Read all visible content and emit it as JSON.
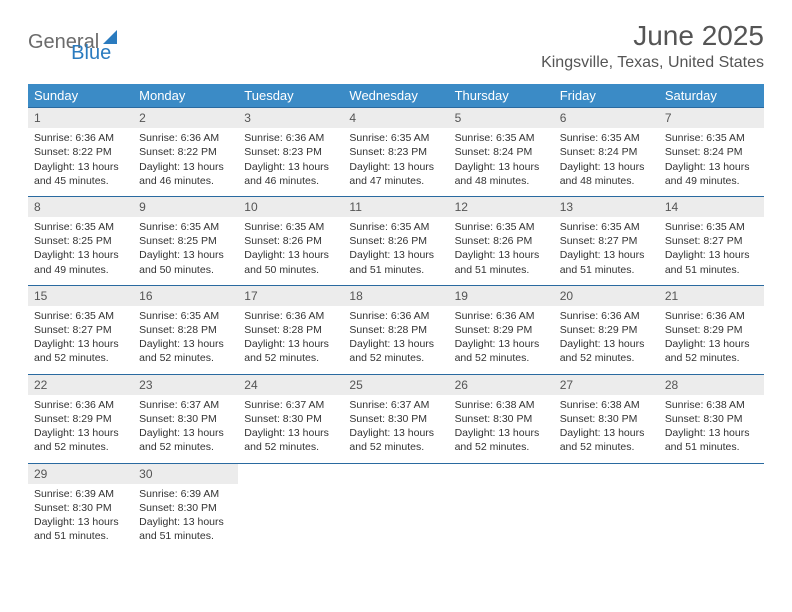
{
  "logo": {
    "part1": "General",
    "part2": "Blue"
  },
  "title": "June 2025",
  "location": "Kingsville, Texas, United States",
  "colors": {
    "header_bg": "#3b8bc6",
    "header_text": "#ffffff",
    "week_border": "#2a6aa0",
    "daynum_bg": "#ececec",
    "body_text": "#333333",
    "title_text": "#555555",
    "logo_gray": "#6b6b6b",
    "logo_blue": "#2a7bbf",
    "page_bg": "#ffffff"
  },
  "dow": [
    "Sunday",
    "Monday",
    "Tuesday",
    "Wednesday",
    "Thursday",
    "Friday",
    "Saturday"
  ],
  "weeks": [
    [
      {
        "n": "1",
        "sr": "Sunrise: 6:36 AM",
        "ss": "Sunset: 8:22 PM",
        "d1": "Daylight: 13 hours",
        "d2": "and 45 minutes."
      },
      {
        "n": "2",
        "sr": "Sunrise: 6:36 AM",
        "ss": "Sunset: 8:22 PM",
        "d1": "Daylight: 13 hours",
        "d2": "and 46 minutes."
      },
      {
        "n": "3",
        "sr": "Sunrise: 6:36 AM",
        "ss": "Sunset: 8:23 PM",
        "d1": "Daylight: 13 hours",
        "d2": "and 46 minutes."
      },
      {
        "n": "4",
        "sr": "Sunrise: 6:35 AM",
        "ss": "Sunset: 8:23 PM",
        "d1": "Daylight: 13 hours",
        "d2": "and 47 minutes."
      },
      {
        "n": "5",
        "sr": "Sunrise: 6:35 AM",
        "ss": "Sunset: 8:24 PM",
        "d1": "Daylight: 13 hours",
        "d2": "and 48 minutes."
      },
      {
        "n": "6",
        "sr": "Sunrise: 6:35 AM",
        "ss": "Sunset: 8:24 PM",
        "d1": "Daylight: 13 hours",
        "d2": "and 48 minutes."
      },
      {
        "n": "7",
        "sr": "Sunrise: 6:35 AM",
        "ss": "Sunset: 8:24 PM",
        "d1": "Daylight: 13 hours",
        "d2": "and 49 minutes."
      }
    ],
    [
      {
        "n": "8",
        "sr": "Sunrise: 6:35 AM",
        "ss": "Sunset: 8:25 PM",
        "d1": "Daylight: 13 hours",
        "d2": "and 49 minutes."
      },
      {
        "n": "9",
        "sr": "Sunrise: 6:35 AM",
        "ss": "Sunset: 8:25 PM",
        "d1": "Daylight: 13 hours",
        "d2": "and 50 minutes."
      },
      {
        "n": "10",
        "sr": "Sunrise: 6:35 AM",
        "ss": "Sunset: 8:26 PM",
        "d1": "Daylight: 13 hours",
        "d2": "and 50 minutes."
      },
      {
        "n": "11",
        "sr": "Sunrise: 6:35 AM",
        "ss": "Sunset: 8:26 PM",
        "d1": "Daylight: 13 hours",
        "d2": "and 51 minutes."
      },
      {
        "n": "12",
        "sr": "Sunrise: 6:35 AM",
        "ss": "Sunset: 8:26 PM",
        "d1": "Daylight: 13 hours",
        "d2": "and 51 minutes."
      },
      {
        "n": "13",
        "sr": "Sunrise: 6:35 AM",
        "ss": "Sunset: 8:27 PM",
        "d1": "Daylight: 13 hours",
        "d2": "and 51 minutes."
      },
      {
        "n": "14",
        "sr": "Sunrise: 6:35 AM",
        "ss": "Sunset: 8:27 PM",
        "d1": "Daylight: 13 hours",
        "d2": "and 51 minutes."
      }
    ],
    [
      {
        "n": "15",
        "sr": "Sunrise: 6:35 AM",
        "ss": "Sunset: 8:27 PM",
        "d1": "Daylight: 13 hours",
        "d2": "and 52 minutes."
      },
      {
        "n": "16",
        "sr": "Sunrise: 6:35 AM",
        "ss": "Sunset: 8:28 PM",
        "d1": "Daylight: 13 hours",
        "d2": "and 52 minutes."
      },
      {
        "n": "17",
        "sr": "Sunrise: 6:36 AM",
        "ss": "Sunset: 8:28 PM",
        "d1": "Daylight: 13 hours",
        "d2": "and 52 minutes."
      },
      {
        "n": "18",
        "sr": "Sunrise: 6:36 AM",
        "ss": "Sunset: 8:28 PM",
        "d1": "Daylight: 13 hours",
        "d2": "and 52 minutes."
      },
      {
        "n": "19",
        "sr": "Sunrise: 6:36 AM",
        "ss": "Sunset: 8:29 PM",
        "d1": "Daylight: 13 hours",
        "d2": "and 52 minutes."
      },
      {
        "n": "20",
        "sr": "Sunrise: 6:36 AM",
        "ss": "Sunset: 8:29 PM",
        "d1": "Daylight: 13 hours",
        "d2": "and 52 minutes."
      },
      {
        "n": "21",
        "sr": "Sunrise: 6:36 AM",
        "ss": "Sunset: 8:29 PM",
        "d1": "Daylight: 13 hours",
        "d2": "and 52 minutes."
      }
    ],
    [
      {
        "n": "22",
        "sr": "Sunrise: 6:36 AM",
        "ss": "Sunset: 8:29 PM",
        "d1": "Daylight: 13 hours",
        "d2": "and 52 minutes."
      },
      {
        "n": "23",
        "sr": "Sunrise: 6:37 AM",
        "ss": "Sunset: 8:30 PM",
        "d1": "Daylight: 13 hours",
        "d2": "and 52 minutes."
      },
      {
        "n": "24",
        "sr": "Sunrise: 6:37 AM",
        "ss": "Sunset: 8:30 PM",
        "d1": "Daylight: 13 hours",
        "d2": "and 52 minutes."
      },
      {
        "n": "25",
        "sr": "Sunrise: 6:37 AM",
        "ss": "Sunset: 8:30 PM",
        "d1": "Daylight: 13 hours",
        "d2": "and 52 minutes."
      },
      {
        "n": "26",
        "sr": "Sunrise: 6:38 AM",
        "ss": "Sunset: 8:30 PM",
        "d1": "Daylight: 13 hours",
        "d2": "and 52 minutes."
      },
      {
        "n": "27",
        "sr": "Sunrise: 6:38 AM",
        "ss": "Sunset: 8:30 PM",
        "d1": "Daylight: 13 hours",
        "d2": "and 52 minutes."
      },
      {
        "n": "28",
        "sr": "Sunrise: 6:38 AM",
        "ss": "Sunset: 8:30 PM",
        "d1": "Daylight: 13 hours",
        "d2": "and 51 minutes."
      }
    ],
    [
      {
        "n": "29",
        "sr": "Sunrise: 6:39 AM",
        "ss": "Sunset: 8:30 PM",
        "d1": "Daylight: 13 hours",
        "d2": "and 51 minutes."
      },
      {
        "n": "30",
        "sr": "Sunrise: 6:39 AM",
        "ss": "Sunset: 8:30 PM",
        "d1": "Daylight: 13 hours",
        "d2": "and 51 minutes."
      },
      null,
      null,
      null,
      null,
      null
    ]
  ]
}
